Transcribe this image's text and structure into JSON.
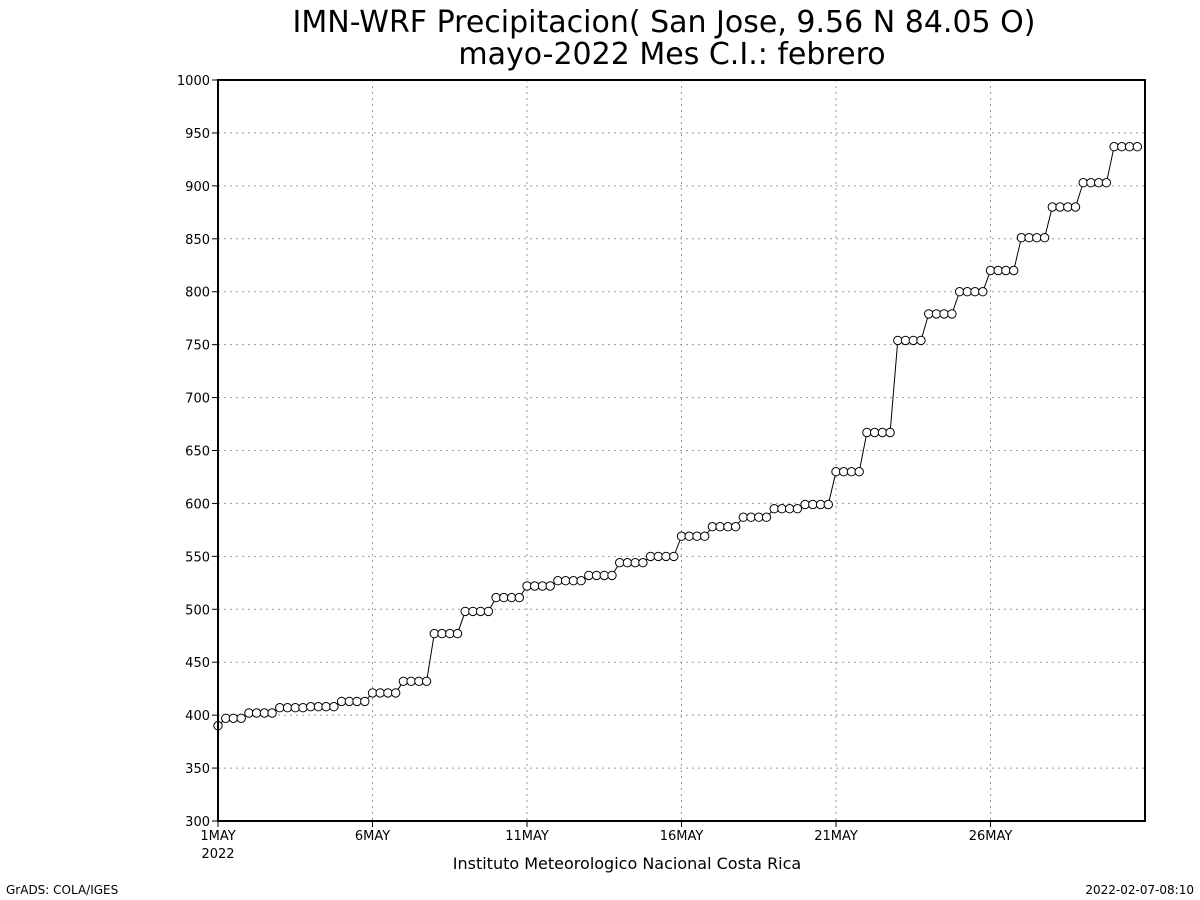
{
  "chart_data": {
    "type": "line",
    "title": "IMN-WRF  Precipitacion( San Jose, 9.56  N 84.05  O)",
    "subtitle": "mayo-2022 Mes C.I.: febrero",
    "credit": "Instituto Meteorologico Nacional Costa Rica",
    "x_year_label": "2022",
    "x_ticks": [
      {
        "label": "1MAY",
        "day": 1
      },
      {
        "label": "6MAY",
        "day": 6
      },
      {
        "label": "11MAY",
        "day": 11
      },
      {
        "label": "16MAY",
        "day": 16
      },
      {
        "label": "21MAY",
        "day": 21
      },
      {
        "label": "26MAY",
        "day": 26
      }
    ],
    "xlim": [
      1,
      31
    ],
    "ylim": [
      300,
      1000
    ],
    "y_ticks": [
      "300",
      "350",
      "400",
      "450",
      "500",
      "550",
      "600",
      "650",
      "700",
      "750",
      "800",
      "850",
      "900",
      "950",
      "1000"
    ],
    "grid": true,
    "marker": "open-circle",
    "daily_steps": [
      [
        390,
        397,
        397,
        397
      ],
      [
        402,
        402,
        402,
        402
      ],
      [
        407,
        407,
        407,
        407
      ],
      [
        408,
        408,
        408,
        408
      ],
      [
        413,
        413,
        413,
        413
      ],
      [
        421,
        421,
        421,
        421
      ],
      [
        432,
        432,
        432,
        432
      ],
      [
        477,
        477,
        477,
        477
      ],
      [
        498,
        498,
        498,
        498
      ],
      [
        511,
        511,
        511,
        511
      ],
      [
        522,
        522,
        522,
        522
      ],
      [
        527,
        527,
        527,
        527
      ],
      [
        532,
        532,
        532,
        532
      ],
      [
        544,
        544,
        544,
        544
      ],
      [
        550,
        550,
        550,
        550
      ],
      [
        569,
        569,
        569,
        569
      ],
      [
        578,
        578,
        578,
        578
      ],
      [
        587,
        587,
        587,
        587
      ],
      [
        595,
        595,
        595,
        595
      ],
      [
        599,
        599,
        599,
        599
      ],
      [
        630,
        630,
        630,
        630
      ],
      [
        667,
        667,
        667,
        667
      ],
      [
        754,
        754,
        754,
        754
      ],
      [
        779,
        779,
        779,
        779
      ],
      [
        800,
        800,
        800,
        800
      ],
      [
        820,
        820,
        820,
        820
      ],
      [
        851,
        851,
        851,
        851
      ],
      [
        880,
        880,
        880,
        880
      ],
      [
        903,
        903,
        903,
        903
      ],
      [
        937,
        937,
        937,
        937
      ]
    ]
  },
  "footer": {
    "left": "GrADS: COLA/IGES",
    "right": "2022-02-07-08:10"
  }
}
